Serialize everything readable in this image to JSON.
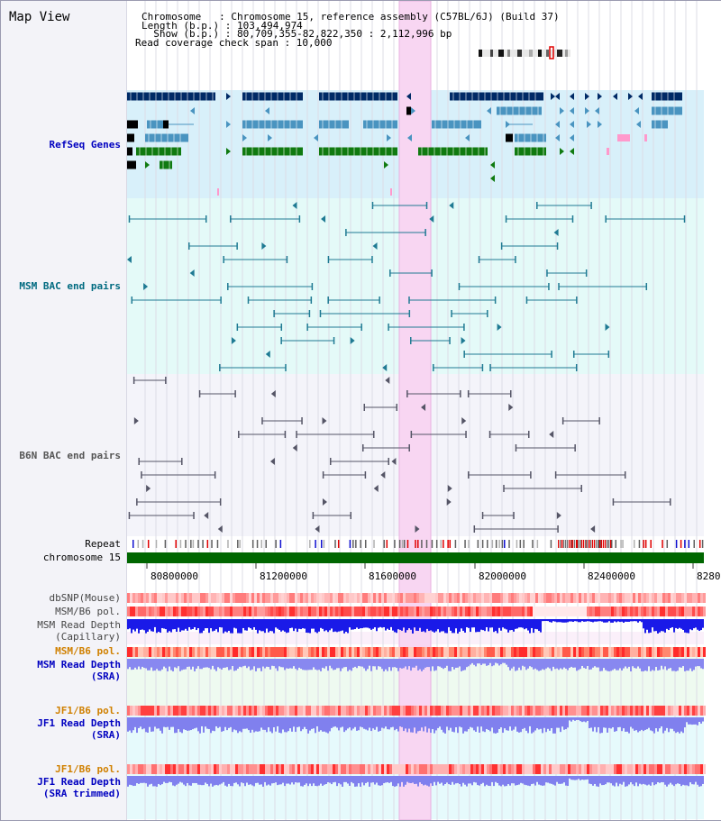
{
  "title": "Map View",
  "info": {
    "chromosome": "Chromosome   : Chromosome 15, reference assembly (C57BL/6J) (Build 37)",
    "length": "Length (b.p.) : 103,494,974",
    "show": "  Show (b.p.) : 80,709,355-82,822,350 : 2,112,996 bp",
    "coverage": "Read coverage check span : 10,000"
  },
  "tracks": {
    "refseq": "RefSeq Genes",
    "msm_bac": "MSM BAC end pairs",
    "b6n_bac": "B6N BAC end pairs",
    "repeat": "Repeat",
    "chromosome": "chromosome 15",
    "dbsnp": "dbSNP(Mouse)",
    "msm_pol": "MSM/B6 pol.",
    "msm_depth_cap_1": "MSM Read Depth",
    "msm_depth_cap_2": "(Capillary)",
    "msm_pol2": "MSM/B6 pol.",
    "msm_depth_sra_1": "MSM Read Depth",
    "msm_depth_sra_2": "(SRA)",
    "jf1_pol": "JF1/B6 pol.",
    "jf1_depth_1": "JF1 Read Depth",
    "jf1_depth_2": "(SRA)",
    "jf1_pol2": "JF1/B6 pol.",
    "jf1_trim_1": "JF1 Read Depth",
    "jf1_trim_2": "(SRA trimmed)"
  },
  "axis": {
    "ticks": [
      "80800000",
      "81200000",
      "81600000",
      "82000000",
      "82400000",
      "8280"
    ]
  },
  "colors": {
    "refseq_bg": "#d8f0fa",
    "msm_bg": "#e4faf8",
    "b6n_bg": "#f4f4fa",
    "highlight": "#f8d6f2",
    "chrom": "#006600",
    "navy": "#002a66",
    "teal": "#4a94c0",
    "green": "#107a10",
    "label_blue": "#0000c0",
    "label_teal": "#006a80",
    "label_gray": "#444444",
    "label_orange": "#d08000"
  }
}
